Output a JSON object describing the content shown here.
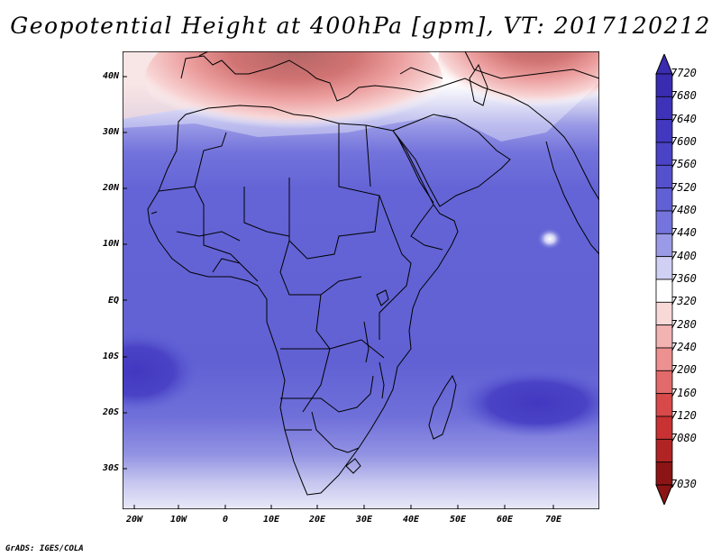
{
  "title": "Geopotential Height at 400hPa [gpm], VT: 2017120212",
  "credit": "GrADS: IGES/COLA",
  "lat_labels": [
    "40N",
    "30N",
    "20N",
    "10N",
    "EQ",
    "10S",
    "20S",
    "30S"
  ],
  "lon_labels": [
    "20W",
    "10W",
    "0",
    "10E",
    "20E",
    "30E",
    "40E",
    "50E",
    "60E",
    "70E"
  ],
  "colorbar": {
    "labels": [
      "7720",
      "7680",
      "7640",
      "7600",
      "7560",
      "7520",
      "7480",
      "7440",
      "7400",
      "7360",
      "7320",
      "7280",
      "7240",
      "7200",
      "7160",
      "7120",
      "7080",
      "7030"
    ],
    "colors": [
      "#3a2cb0",
      "#3d32b8",
      "#4238c0",
      "#4a43c6",
      "#5550cc",
      "#6160d4",
      "#7474dc",
      "#9a9ae6",
      "#cfd0f3",
      "#ffffff",
      "#f9d8d8",
      "#f3b3b3",
      "#ec9090",
      "#e26a6a",
      "#d84a4a",
      "#c83232",
      "#b12424",
      "#8c1414"
    ],
    "top_color": "#3a2cb0",
    "bottom_color": "#8c1414"
  }
}
